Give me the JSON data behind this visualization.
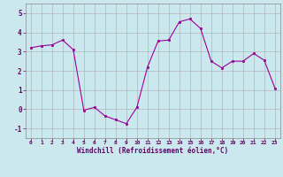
{
  "x": [
    0,
    1,
    2,
    3,
    4,
    5,
    6,
    7,
    8,
    9,
    10,
    11,
    12,
    13,
    14,
    15,
    16,
    17,
    18,
    19,
    20,
    21,
    22,
    23
  ],
  "y": [
    3.2,
    3.3,
    3.35,
    3.6,
    3.1,
    -0.05,
    0.1,
    -0.35,
    -0.55,
    -0.75,
    0.1,
    2.2,
    3.55,
    3.6,
    4.55,
    4.7,
    4.2,
    2.5,
    2.15,
    2.5,
    2.5,
    2.9,
    2.55,
    1.1
  ],
  "line_color": "#990099",
  "marker_color": "#990099",
  "bg_color": "#cce8ef",
  "grid_color": "#aaaaaa",
  "xlabel": "Windchill (Refroidissement éolien,°C)",
  "ylim": [
    -1.5,
    5.5
  ],
  "xlim": [
    -0.5,
    23.5
  ],
  "yticks": [
    -1,
    0,
    1,
    2,
    3,
    4,
    5
  ],
  "xticks": [
    0,
    1,
    2,
    3,
    4,
    5,
    6,
    7,
    8,
    9,
    10,
    11,
    12,
    13,
    14,
    15,
    16,
    17,
    18,
    19,
    20,
    21,
    22,
    23
  ],
  "tick_label_color": "#660066",
  "axis_label_color": "#660066"
}
